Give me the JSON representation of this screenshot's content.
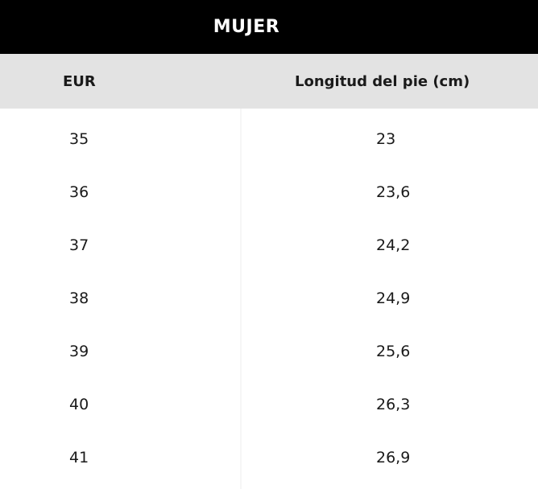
{
  "table": {
    "title": "MUJER",
    "headers": {
      "eur": "EUR",
      "length": "Longitud del pie (cm)"
    },
    "rows": [
      {
        "eur": "35",
        "length": "23"
      },
      {
        "eur": "36",
        "length": "23,6"
      },
      {
        "eur": "37",
        "length": "24,2"
      },
      {
        "eur": "38",
        "length": "24,9"
      },
      {
        "eur": "39",
        "length": "25,6"
      },
      {
        "eur": "40",
        "length": "26,3"
      },
      {
        "eur": "41",
        "length": "26,9"
      }
    ],
    "colors": {
      "title_background": "#000000",
      "title_text": "#ffffff",
      "header_background": "#e3e3e3",
      "body_background": "#ffffff",
      "text": "#1a1a1a"
    }
  }
}
